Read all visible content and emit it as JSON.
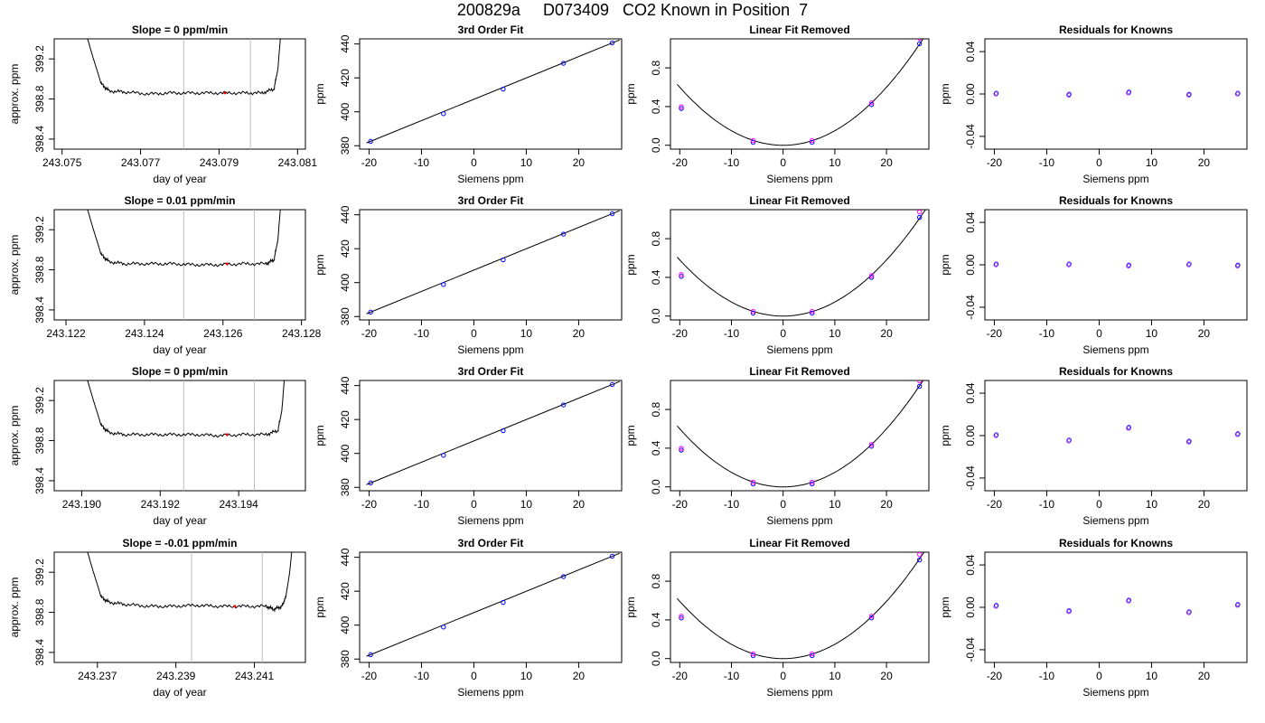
{
  "page_title": "200829a     D073409   CO2 Known in Position  7",
  "colors": {
    "line": "#000000",
    "vline": "#bebebe",
    "red": "#ff0000",
    "blue": "#0000ff",
    "magenta": "#ff00ff",
    "cyan": "#00bfff",
    "purple": "#a020f0"
  },
  "chart_data": [
    {
      "type": "line",
      "title": "Slope =  0  ppm/min",
      "xlabel": "day of year",
      "ylabel": "approx. ppm",
      "xlim": [
        243.0748,
        243.0812
      ],
      "ylim": [
        398.3,
        399.4
      ],
      "xticks": [
        "243.075",
        "243.077",
        "243.079",
        "243.081"
      ],
      "yticks": [
        "398.4",
        "398.8",
        "399.2"
      ],
      "vlines": [
        243.0781,
        243.0798
      ],
      "series": [
        {
          "x": [
            243.0755,
            243.0758,
            243.076,
            243.0762,
            243.0766,
            243.0772,
            243.0778,
            243.0784,
            243.079,
            243.0796,
            243.0801,
            243.0804,
            243.0805,
            243.0806
          ],
          "y": [
            399.6,
            399.2,
            398.95,
            398.88,
            398.87,
            398.85,
            398.86,
            398.86,
            398.86,
            398.86,
            398.86,
            398.9,
            399.1,
            399.6
          ]
        }
      ]
    },
    {
      "type": "scatter",
      "title": "3rd Order Fit",
      "xlabel": "Siemens ppm",
      "ylabel": "ppm",
      "xlim": [
        -21.8,
        28.2
      ],
      "ylim": [
        378,
        443
      ],
      "xticks": [
        "-20",
        "-10",
        "0",
        "10",
        "20"
      ],
      "yticks": [
        "380",
        "400",
        "420",
        "440"
      ],
      "x": [
        -19.7,
        -5.8,
        5.6,
        17.1,
        26.4
      ],
      "y": [
        382.6,
        398.9,
        413.4,
        428.6,
        440.6
      ],
      "fit": [
        -20.5,
        27.8
      ]
    },
    {
      "type": "scatter",
      "title": "Linear Fit Removed",
      "xlabel": "Siemens ppm",
      "ylabel": "ppm",
      "xlim": [
        -21.8,
        28.2
      ],
      "ylim": [
        -0.04,
        1.1
      ],
      "xticks": [
        "-20",
        "-10",
        "0",
        "10",
        "20"
      ],
      "yticks": [
        "0.0",
        "0.4",
        "0.8"
      ],
      "x": [
        -19.7,
        -5.8,
        5.6,
        17.1,
        26.4
      ],
      "y": [
        0.38,
        0.03,
        0.03,
        0.42,
        1.05
      ],
      "coeffs": [
        0.0015,
        0.0
      ]
    },
    {
      "type": "scatter",
      "title": "Residuals for Knowns",
      "xlabel": "Siemens ppm",
      "ylabel": "ppm",
      "xlim": [
        -21.8,
        28.2
      ],
      "ylim": [
        -0.052,
        0.052
      ],
      "xticks": [
        "-20",
        "-10",
        "0",
        "10",
        "20"
      ],
      "yticks": [
        "-0.04",
        "0.00",
        "0.04"
      ],
      "x": [
        -19.7,
        -5.8,
        5.6,
        17.1,
        26.4
      ],
      "y": [
        0.0,
        -0.001,
        0.001,
        -0.001,
        0.0
      ]
    },
    {
      "type": "line",
      "title": "Slope =  0.01  ppm/min",
      "xlabel": "day of year",
      "ylabel": "approx. ppm",
      "xlim": [
        243.1217,
        243.1281
      ],
      "ylim": [
        398.3,
        399.4
      ],
      "xticks": [
        "243.122",
        "243.124",
        "243.126",
        "243.128"
      ],
      "yticks": [
        "398.4",
        "398.8",
        "399.2"
      ],
      "vlines": [
        243.125,
        243.1268
      ],
      "series": [
        {
          "x": [
            243.1224,
            243.1227,
            243.1229,
            243.1231,
            243.1235,
            243.1241,
            243.1247,
            243.1253,
            243.1259,
            243.1265,
            243.1271,
            243.1273,
            243.1274,
            243.1275
          ],
          "y": [
            399.6,
            399.2,
            398.95,
            398.88,
            398.86,
            398.86,
            398.86,
            398.85,
            398.85,
            398.86,
            398.86,
            398.9,
            399.1,
            399.6
          ]
        }
      ]
    },
    {
      "type": "scatter",
      "title": "3rd Order Fit",
      "xlabel": "Siemens ppm",
      "ylabel": "ppm",
      "xlim": [
        -21.8,
        28.2
      ],
      "ylim": [
        378,
        443
      ],
      "xticks": [
        "-20",
        "-10",
        "0",
        "10",
        "20"
      ],
      "yticks": [
        "380",
        "400",
        "420",
        "440"
      ],
      "x": [
        -19.7,
        -5.8,
        5.6,
        17.1,
        26.4
      ],
      "y": [
        382.6,
        398.9,
        413.4,
        428.6,
        440.6
      ],
      "fit": [
        -20.5,
        27.8
      ]
    },
    {
      "type": "scatter",
      "title": "Linear Fit Removed",
      "xlabel": "Siemens ppm",
      "ylabel": "ppm",
      "xlim": [
        -21.8,
        28.2
      ],
      "ylim": [
        -0.04,
        1.1
      ],
      "xticks": [
        "-20",
        "-10",
        "0",
        "10",
        "20"
      ],
      "yticks": [
        "0.0",
        "0.4",
        "0.8"
      ],
      "x": [
        -19.7,
        -5.8,
        5.6,
        17.1,
        26.4
      ],
      "y": [
        0.41,
        0.03,
        0.03,
        0.4,
        1.02
      ],
      "coeffs": [
        0.00145,
        0.0
      ]
    },
    {
      "type": "scatter",
      "title": "Residuals for Knowns",
      "xlabel": "Siemens ppm",
      "ylabel": "ppm",
      "xlim": [
        -21.8,
        28.2
      ],
      "ylim": [
        -0.052,
        0.052
      ],
      "xticks": [
        "-20",
        "-10",
        "0",
        "10",
        "20"
      ],
      "yticks": [
        "-0.04",
        "0.00",
        "0.04"
      ],
      "x": [
        -19.7,
        -5.8,
        5.6,
        17.1,
        26.4
      ],
      "y": [
        0.0,
        0.0,
        -0.001,
        0.0,
        -0.001
      ]
    },
    {
      "type": "line",
      "title": "Slope =  0  ppm/min",
      "xlabel": "day of year",
      "ylabel": "approx. ppm",
      "xlim": [
        243.1893,
        243.1957
      ],
      "ylim": [
        398.3,
        399.4
      ],
      "xticks": [
        "243.190",
        "243.192",
        "243.194"
      ],
      "yticks": [
        "398.4",
        "398.8",
        "399.2"
      ],
      "vlines": [
        243.1926,
        243.1944
      ],
      "series": [
        {
          "x": [
            243.19,
            243.1903,
            243.1905,
            243.1907,
            243.1911,
            243.1917,
            243.1923,
            243.1929,
            243.1935,
            243.1941,
            243.1947,
            243.195,
            243.1951,
            243.1952
          ],
          "y": [
            399.6,
            399.2,
            398.95,
            398.88,
            398.86,
            398.86,
            398.86,
            398.86,
            398.85,
            398.86,
            398.86,
            398.9,
            399.1,
            399.6
          ]
        }
      ]
    },
    {
      "type": "scatter",
      "title": "3rd Order Fit",
      "xlabel": "Siemens ppm",
      "ylabel": "ppm",
      "xlim": [
        -21.8,
        28.2
      ],
      "ylim": [
        378,
        443
      ],
      "xticks": [
        "-20",
        "-10",
        "0",
        "10",
        "20"
      ],
      "yticks": [
        "380",
        "400",
        "420",
        "440"
      ],
      "x": [
        -19.7,
        -5.8,
        5.6,
        17.1,
        26.4
      ],
      "y": [
        382.6,
        398.9,
        413.4,
        428.6,
        440.6
      ],
      "fit": [
        -20.5,
        27.8
      ]
    },
    {
      "type": "scatter",
      "title": "Linear Fit Removed",
      "xlabel": "Siemens ppm",
      "ylabel": "ppm",
      "xlim": [
        -21.8,
        28.2
      ],
      "ylim": [
        -0.04,
        1.1
      ],
      "xticks": [
        "-20",
        "-10",
        "0",
        "10",
        "20"
      ],
      "yticks": [
        "0.0",
        "0.4",
        "0.8"
      ],
      "x": [
        -19.7,
        -5.8,
        5.6,
        17.1,
        26.4
      ],
      "y": [
        0.38,
        0.03,
        0.03,
        0.42,
        1.04
      ],
      "coeffs": [
        0.0015,
        0.0
      ]
    },
    {
      "type": "scatter",
      "title": "Residuals for Knowns",
      "xlabel": "Siemens ppm",
      "ylabel": "ppm",
      "xlim": [
        -21.8,
        28.2
      ],
      "ylim": [
        -0.052,
        0.052
      ],
      "xticks": [
        "-20",
        "-10",
        "0",
        "10",
        "20"
      ],
      "yticks": [
        "-0.04",
        "0.00",
        "0.04"
      ],
      "x": [
        -19.7,
        -5.8,
        5.6,
        17.1,
        26.4
      ],
      "y": [
        0.0,
        -0.005,
        0.007,
        -0.006,
        0.001
      ]
    },
    {
      "type": "line",
      "title": "Slope =  -0.01  ppm/min",
      "xlabel": "day of year",
      "ylabel": "approx. ppm",
      "xlim": [
        243.2359,
        243.2423
      ],
      "ylim": [
        398.3,
        399.4
      ],
      "xticks": [
        "243.237",
        "243.239",
        "243.241"
      ],
      "yticks": [
        "398.4",
        "398.8",
        "399.2"
      ],
      "vlines": [
        243.2394,
        243.2412
      ],
      "series": [
        {
          "x": [
            243.2366,
            243.2369,
            243.2371,
            243.2373,
            243.2377,
            243.2383,
            243.2389,
            243.2395,
            243.2401,
            243.2407,
            243.2413,
            243.2415,
            243.2417,
            243.2418,
            243.2419,
            243.242
          ],
          "y": [
            399.6,
            399.2,
            398.95,
            398.9,
            398.88,
            398.86,
            398.86,
            398.87,
            398.86,
            398.86,
            398.86,
            398.83,
            398.86,
            398.95,
            399.2,
            399.6
          ]
        }
      ]
    },
    {
      "type": "scatter",
      "title": "3rd Order Fit",
      "xlabel": "Siemens ppm",
      "ylabel": "ppm",
      "xlim": [
        -21.8,
        28.2
      ],
      "ylim": [
        378,
        443
      ],
      "xticks": [
        "-20",
        "-10",
        "0",
        "10",
        "20"
      ],
      "yticks": [
        "380",
        "400",
        "420",
        "440"
      ],
      "x": [
        -19.7,
        -5.8,
        5.6,
        17.1,
        26.4
      ],
      "y": [
        382.6,
        398.9,
        413.4,
        428.6,
        440.6
      ],
      "fit": [
        -20.5,
        27.8
      ]
    },
    {
      "type": "scatter",
      "title": "Linear Fit Removed",
      "xlabel": "Siemens ppm",
      "ylabel": "ppm",
      "xlim": [
        -21.8,
        28.2
      ],
      "ylim": [
        -0.04,
        1.1
      ],
      "xticks": [
        "-20",
        "-10",
        "0",
        "10",
        "20"
      ],
      "yticks": [
        "0.0",
        "0.4",
        "0.8"
      ],
      "x": [
        -19.7,
        -5.8,
        5.6,
        17.1,
        26.4
      ],
      "y": [
        0.42,
        0.03,
        0.03,
        0.42,
        1.02
      ],
      "coeffs": [
        0.00148,
        0.0
      ]
    },
    {
      "type": "scatter",
      "title": "Residuals for Knowns",
      "xlabel": "Siemens ppm",
      "ylabel": "ppm",
      "xlim": [
        -21.8,
        28.2
      ],
      "ylim": [
        -0.052,
        0.052
      ],
      "xticks": [
        "-20",
        "-10",
        "0",
        "10",
        "20"
      ],
      "yticks": [
        "-0.04",
        "0.00",
        "0.04"
      ],
      "x": [
        -19.7,
        -5.8,
        5.6,
        17.1,
        26.4
      ],
      "y": [
        0.001,
        -0.004,
        0.006,
        -0.005,
        0.002
      ]
    }
  ]
}
